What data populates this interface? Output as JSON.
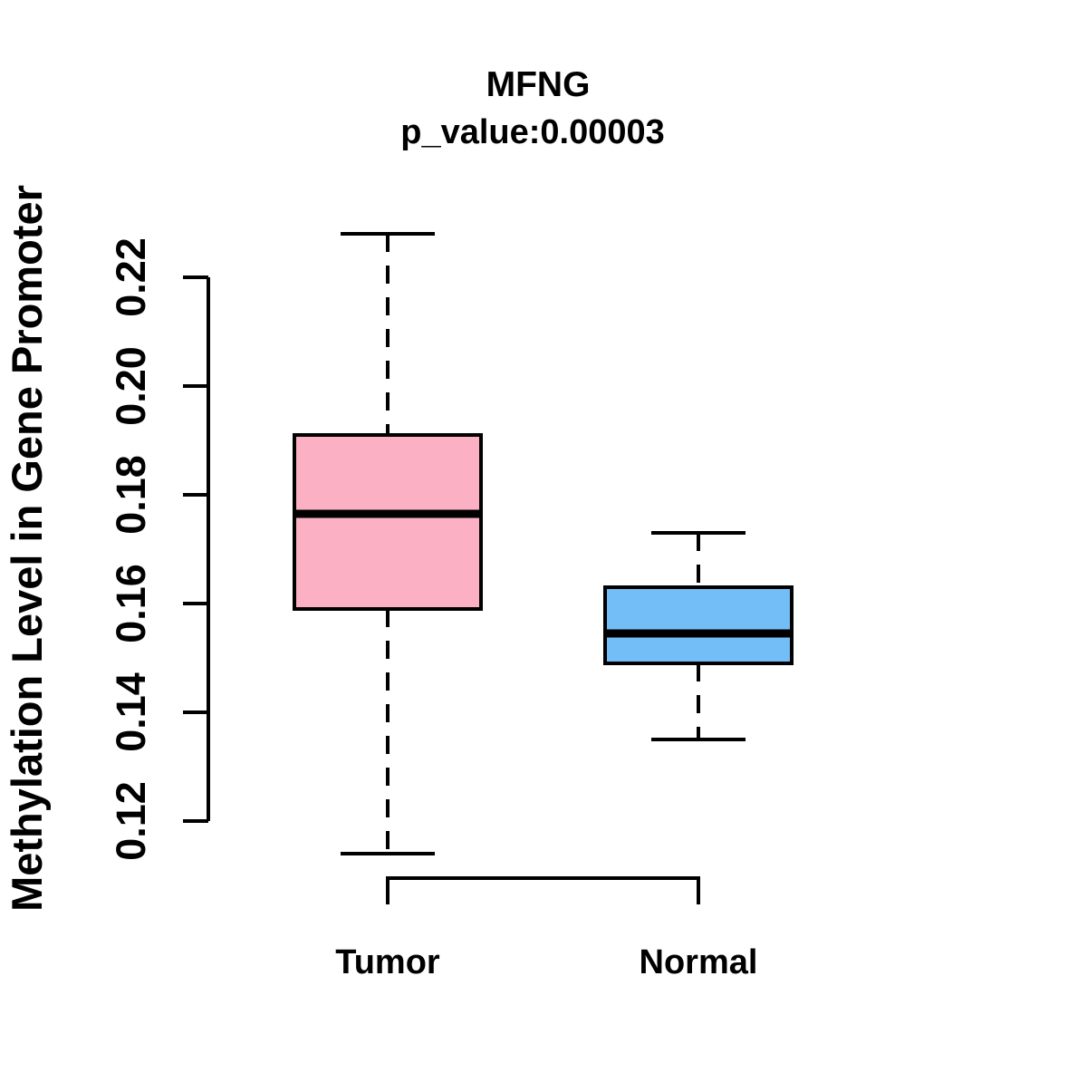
{
  "chart_data": {
    "type": "boxplot",
    "title": "MFNG",
    "subtitle": "p_value:0.00003",
    "xlabel": "",
    "ylabel": "Methylation Level in Gene Promoter",
    "ylim": [
      0.12,
      0.22
    ],
    "yticks": [
      0.12,
      0.14,
      0.16,
      0.18,
      0.2,
      0.22
    ],
    "ytick_labels": [
      "0.12",
      "0.14",
      "0.16",
      "0.18",
      "0.20",
      "0.22"
    ],
    "categories": [
      "Tumor",
      "Normal"
    ],
    "series": [
      {
        "name": "Tumor",
        "whisker_low": 0.114,
        "q1": 0.159,
        "median": 0.1765,
        "q3": 0.191,
        "whisker_high": 0.228,
        "fill_color": "#FCB0C3"
      },
      {
        "name": "Normal",
        "whisker_low": 0.135,
        "q1": 0.149,
        "median": 0.1545,
        "q3": 0.163,
        "whisker_high": 0.173,
        "fill_color": "#74BEF8"
      }
    ],
    "layout_hints": {
      "grid": "off",
      "legend": "none",
      "whisker_style": "dashed",
      "tick_label_rotation": "vertical",
      "background": "#FFFFFF",
      "stroke_color": "#000000"
    }
  }
}
